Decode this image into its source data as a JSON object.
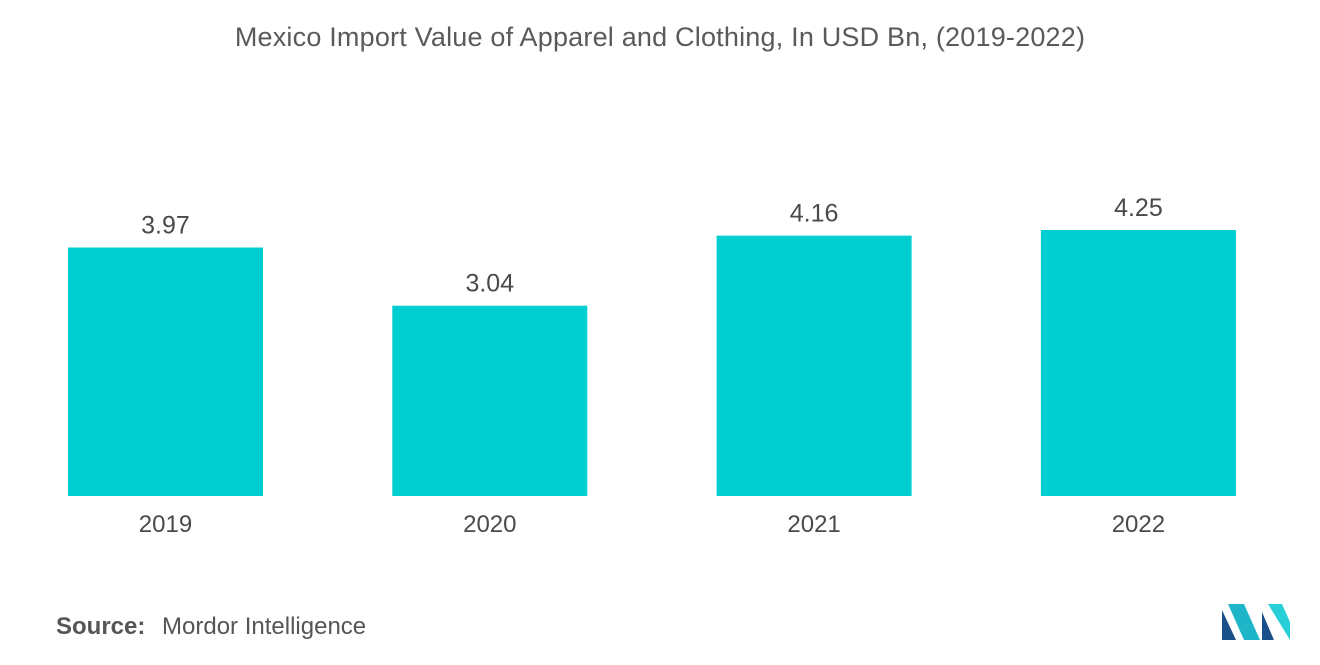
{
  "title": "Mexico Import Value of Apparel and Clothing, In USD Bn, (2019-2022)",
  "source": {
    "label": "Source:",
    "value": "Mordor Intelligence"
  },
  "logo": {
    "icon": "mordor-intelligence-logo",
    "colors": [
      "#1b4f8a",
      "#1fb5c9",
      "#27d0d8"
    ]
  },
  "colors": {
    "bar": "#00ced1",
    "text": "#4a4a4a"
  },
  "chart_data": {
    "type": "bar",
    "title": "Mexico Import Value of Apparel and Clothing, In USD Bn, (2019-2022)",
    "categories": [
      "2019",
      "2020",
      "2021",
      "2022"
    ],
    "values": [
      3.97,
      3.04,
      4.16,
      4.25
    ],
    "data_labels": [
      "3.97",
      "3.04",
      "4.16",
      "4.25"
    ],
    "xlabel": "",
    "ylabel": "",
    "ylim": [
      0,
      4.25
    ],
    "grid": false,
    "legend": "none"
  }
}
